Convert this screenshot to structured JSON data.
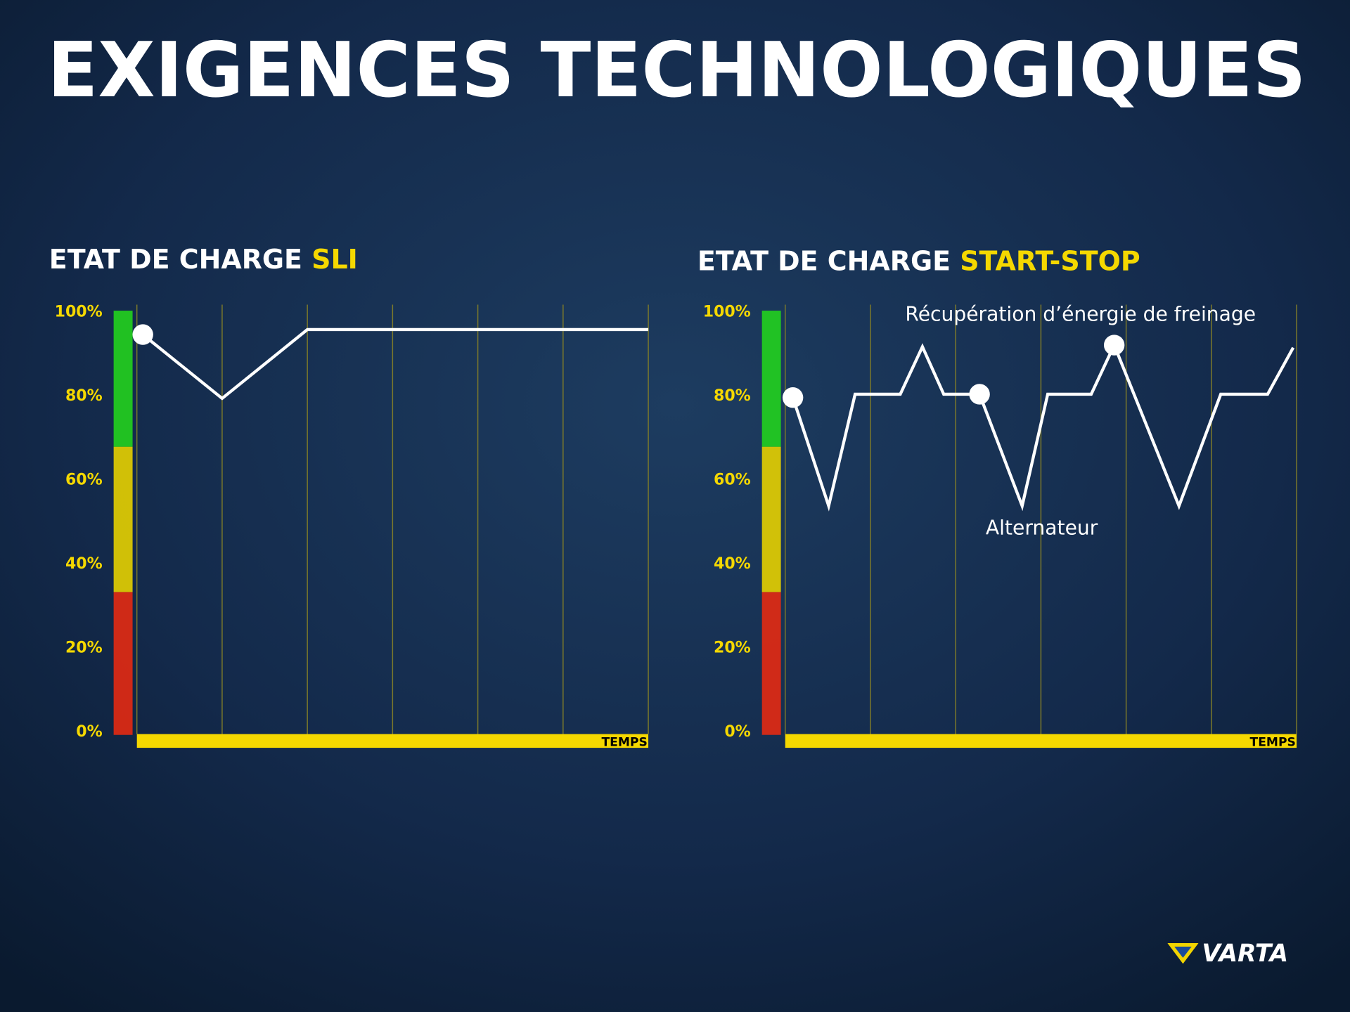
{
  "title": "EXIGENCES TECHNOLOGIQUES",
  "brand": "VARTA",
  "chart_data": [
    {
      "type": "line",
      "title": "ETAT DE CHARGE",
      "title_highlight": "SLI",
      "x_label": "TEMPS",
      "x": [
        0.07,
        1,
        2,
        6
      ],
      "values": [
        94.3,
        79.1,
        95.5,
        95.5
      ],
      "markers": [
        0
      ],
      "color": "#ffffff",
      "xlim": [
        0,
        6
      ],
      "ylim": [
        0,
        100
      ],
      "yticks": [
        {
          "value": 0,
          "label": "0%"
        },
        {
          "value": 20,
          "label": "20%"
        },
        {
          "value": 40,
          "label": "40%"
        },
        {
          "value": 60,
          "label": "60%"
        },
        {
          "value": 80,
          "label": "80%"
        },
        {
          "value": 100,
          "label": "100%"
        }
      ],
      "zones": [
        {
          "from": 0,
          "to": 33,
          "color": "#e42a12"
        },
        {
          "from": 33,
          "to": 67.6,
          "color": "#e6d000"
        },
        {
          "from": 67.6,
          "to": 100,
          "color": "#22d21e"
        }
      ],
      "annotations": []
    },
    {
      "type": "line",
      "title": "ETAT DE CHARGE",
      "title_highlight": "START-STOP",
      "x_label": "TEMPS",
      "x": [
        0.09,
        0.51,
        0.82,
        1.35,
        1.61,
        1.86,
        2.28,
        2.78,
        3.08,
        3.59,
        3.86,
        4.62,
        5.11,
        5.66,
        5.96
      ],
      "values": [
        79.3,
        53.5,
        80.1,
        80.1,
        91.4,
        80.1,
        80.1,
        53.5,
        80.1,
        80.1,
        91.8,
        53.5,
        80.1,
        80.1,
        91.2
      ],
      "markers": [
        0,
        6,
        10
      ],
      "color": "#ffffff",
      "xlim": [
        0,
        6
      ],
      "ylim": [
        0,
        100
      ],
      "yticks": [
        {
          "value": 0,
          "label": "0%"
        },
        {
          "value": 20,
          "label": "20%"
        },
        {
          "value": 40,
          "label": "40%"
        },
        {
          "value": 60,
          "label": "60%"
        },
        {
          "value": 80,
          "label": "80%"
        },
        {
          "value": 100,
          "label": "100%"
        }
      ],
      "zones": [
        {
          "from": 0,
          "to": 33,
          "color": "#e42a12"
        },
        {
          "from": 33,
          "to": 67.6,
          "color": "#e6d000"
        },
        {
          "from": 67.6,
          "to": 100,
          "color": "#22d21e"
        }
      ],
      "annotations": [
        "Récupération d’énergie de freinage",
        "Alternateur"
      ]
    }
  ]
}
